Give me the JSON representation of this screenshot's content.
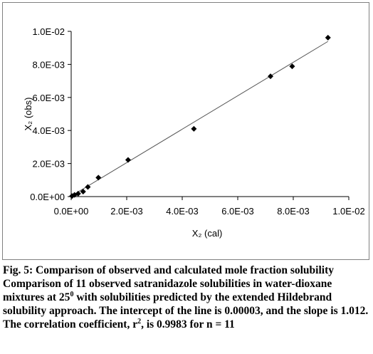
{
  "chart_data": {
    "type": "scatter",
    "xlabel": "X₂ (cal)",
    "ylabel": "X₂ (obs)",
    "xlim": [
      0,
      0.01
    ],
    "ylim": [
      0,
      0.01
    ],
    "xticks": [
      "0.0E+00",
      "2.0E-03",
      "4.0E-03",
      "6.0E-03",
      "8.0E-03",
      "1.0E-02"
    ],
    "yticks": [
      "0.0E+00",
      "2.0E-03",
      "4.0E-03",
      "6.0E-03",
      "8.0E-03",
      "1.0E-02"
    ],
    "points": [
      {
        "x": 3e-05,
        "y": 3e-05
      },
      {
        "x": 0.00012,
        "y": 0.0001
      },
      {
        "x": 0.00025,
        "y": 0.00018
      },
      {
        "x": 0.00043,
        "y": 0.0003
      },
      {
        "x": 0.0006,
        "y": 0.00058
      },
      {
        "x": 0.00098,
        "y": 0.00115
      },
      {
        "x": 0.00205,
        "y": 0.00222
      },
      {
        "x": 0.00442,
        "y": 0.0041
      },
      {
        "x": 0.00718,
        "y": 0.00728
      },
      {
        "x": 0.00796,
        "y": 0.00788
      },
      {
        "x": 0.00925,
        "y": 0.00962
      }
    ],
    "regression_line": {
      "intercept": 3e-05,
      "slope": 1.012,
      "x_range": [
        0,
        0.00925
      ]
    },
    "grid": false,
    "legend": false
  },
  "caption": {
    "title": "Fig. 5: Comparison of observed and calculated mole fraction solubility",
    "body_pre": "Comparison of 11 observed satranidazole solubilities in water-dioxane mixtures at 25",
    "body_sup": "0",
    "body_mid": " with solubilities predicted by the extended Hildebrand solubility approach. The intercept of the line is 0.00003, and the slope is 1.012. The correlation coefficient, r",
    "body_sup2": "2",
    "body_post": ", is 0.9983 for n = 11"
  }
}
